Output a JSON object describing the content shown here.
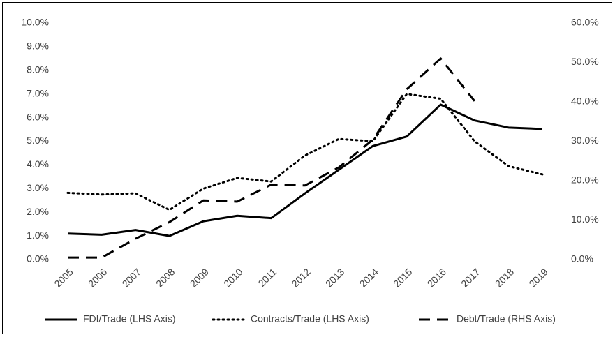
{
  "chart_data": {
    "type": "line",
    "categories": [
      "2005",
      "2006",
      "2007",
      "2008",
      "2009",
      "2010",
      "2011",
      "2012",
      "2013",
      "2014",
      "2015",
      "2016",
      "2017",
      "2018",
      "2019"
    ],
    "series": [
      {
        "name": "FDI/Trade (LHS Axis)",
        "color": "#000000",
        "style": "solid",
        "axis": "y",
        "values": [
          1.1,
          1.05,
          1.25,
          1.0,
          1.62,
          1.85,
          1.75,
          2.8,
          3.8,
          4.8,
          5.2,
          6.55,
          5.88,
          5.58,
          5.52
        ]
      },
      {
        "name": "Contracts/Trade (LHS Axis)",
        "color": "#000000",
        "style": "dotted",
        "axis": "y",
        "values": [
          2.82,
          2.75,
          2.8,
          2.1,
          3.0,
          3.45,
          3.3,
          4.4,
          5.1,
          5.0,
          7.0,
          6.8,
          5.0,
          3.95,
          3.6
        ]
      },
      {
        "name": "Debt/Trade (RHS Axis)",
        "color": "#000000",
        "style": "dashed",
        "axis": "y2",
        "values": [
          0.5,
          0.5,
          5.3,
          9.5,
          15.0,
          14.7,
          19.0,
          18.8,
          23.4,
          30.4,
          43.2,
          51.0,
          40.2,
          null,
          null
        ]
      }
    ],
    "ylim": [
      0,
      10
    ],
    "yticks": [
      {
        "value": 0,
        "label": "0.0%"
      },
      {
        "value": 1,
        "label": "1.0%"
      },
      {
        "value": 2,
        "label": "2.0%"
      },
      {
        "value": 3,
        "label": "3.0%"
      },
      {
        "value": 4,
        "label": "4.0%"
      },
      {
        "value": 5,
        "label": "5.0%"
      },
      {
        "value": 6,
        "label": "6.0%"
      },
      {
        "value": 7,
        "label": "7.0%"
      },
      {
        "value": 8,
        "label": "8.0%"
      },
      {
        "value": 9,
        "label": "9.0%"
      },
      {
        "value": 10,
        "label": "10.0%"
      }
    ],
    "y2lim": [
      0,
      60
    ],
    "y2ticks": [
      {
        "value": 0,
        "label": "0.0%"
      },
      {
        "value": 10,
        "label": "10.0%"
      },
      {
        "value": 20,
        "label": "20.0%"
      },
      {
        "value": 30,
        "label": "30.0%"
      },
      {
        "value": 40,
        "label": "40.0%"
      },
      {
        "value": 50,
        "label": "50.0%"
      },
      {
        "value": 60,
        "label": "60.0%"
      }
    ],
    "legend": "bottom",
    "grid": false
  }
}
